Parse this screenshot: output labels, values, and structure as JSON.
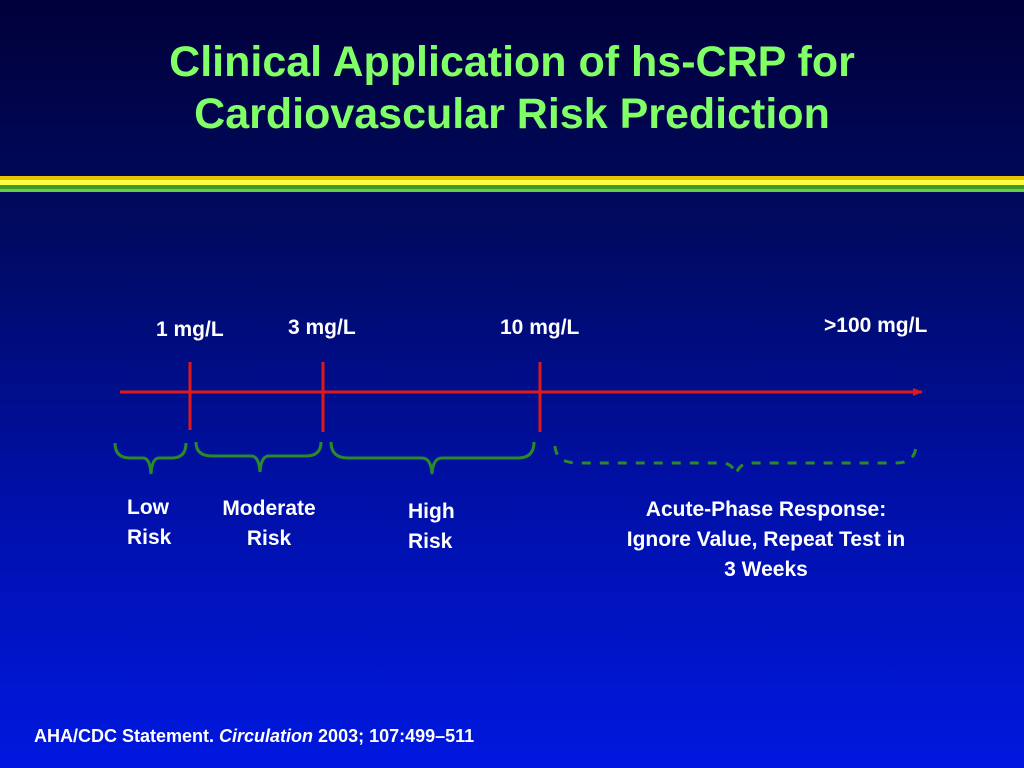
{
  "title": {
    "line1": "Clinical Application of hs-CRP for",
    "line2": "Cardiovascular Risk Prediction"
  },
  "colors": {
    "title": "#80ff66",
    "axis": "#e01818",
    "brace": "#2a8a2a",
    "text": "#ffffff",
    "band": [
      "#e8c400",
      "#ffff40",
      "#3a9a2a",
      "#66d040"
    ]
  },
  "scale": {
    "thresholds": [
      {
        "label": "1 mg/L"
      },
      {
        "label": "3 mg/L"
      },
      {
        "label": "10 mg/L"
      },
      {
        "label": ">100 mg/L"
      }
    ]
  },
  "ranges": {
    "low": {
      "line1": "Low",
      "line2": "Risk"
    },
    "moderate": {
      "line1": "Moderate",
      "line2": "Risk"
    },
    "high": {
      "line1": "High",
      "line2": "Risk"
    },
    "acute": {
      "line1": "Acute-Phase Response:",
      "line2": "Ignore Value, Repeat Test in",
      "line3": "3 Weeks"
    }
  },
  "citation": {
    "prefix": "AHA/CDC Statement. ",
    "journal": "Circulation",
    "suffix": " 2003; 107:499–511"
  }
}
